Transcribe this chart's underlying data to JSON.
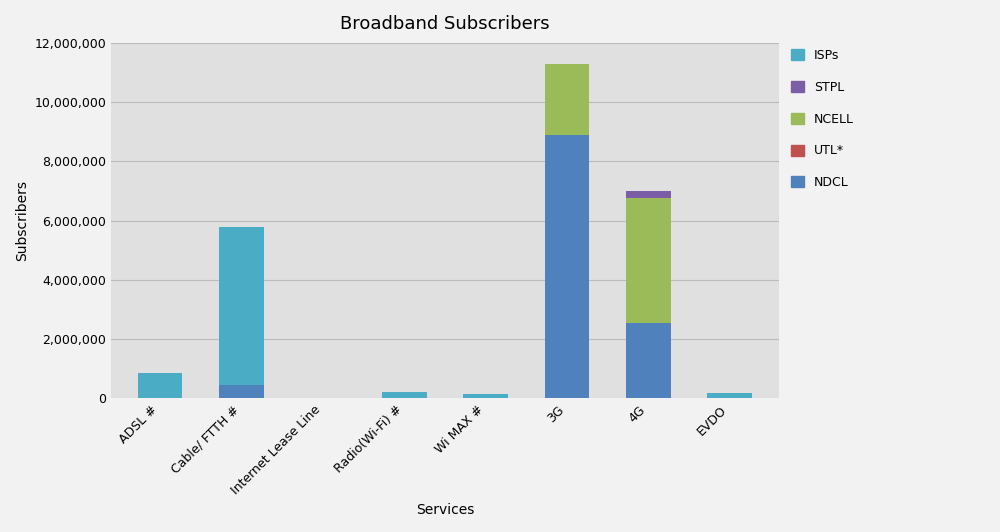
{
  "title": "Broadband Subscribers",
  "xlabel": "Services",
  "ylabel": "Subscribers",
  "categories": [
    "ADSL #",
    "Cable/ FTTH #",
    "Internet Lease Line",
    "Radio(Wi-Fi) #",
    "Wi MAX #",
    "3G",
    "4G",
    "EVDO"
  ],
  "series": {
    "ISPs": [
      850000,
      5350000,
      30000,
      220000,
      150000,
      0,
      0,
      180000
    ],
    "STPL": [
      0,
      0,
      0,
      0,
      0,
      0,
      250000,
      0
    ],
    "NCELL": [
      0,
      0,
      0,
      0,
      0,
      2400000,
      4200000,
      0
    ],
    "UTL*": [
      0,
      0,
      0,
      0,
      0,
      0,
      0,
      0
    ],
    "NDCL": [
      0,
      450000,
      0,
      0,
      0,
      8900000,
      2550000,
      0
    ]
  },
  "colors": {
    "ISPs": "#4BACC6",
    "STPL": "#7B5EA7",
    "NCELL": "#9BBB59",
    "UTL*": "#C0504D",
    "NDCL": "#4F81BD"
  },
  "ylim": [
    0,
    12000000
  ],
  "yticks": [
    0,
    2000000,
    4000000,
    6000000,
    8000000,
    10000000,
    12000000
  ],
  "fig_facecolor": "#F2F2F2",
  "ax_facecolor": "#E0E0E0",
  "grid_color": "#BBBBBB",
  "title_fontsize": 13,
  "label_fontsize": 10,
  "tick_fontsize": 9,
  "legend_fontsize": 9,
  "bar_width": 0.55
}
